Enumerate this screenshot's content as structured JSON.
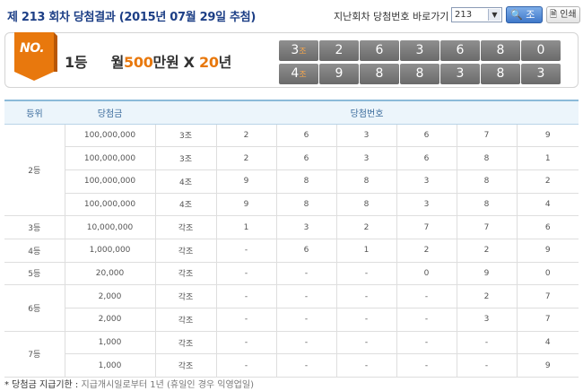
{
  "header": {
    "title": "제 213 회차 당첨결과 (2015년 07월 29일 추첨)",
    "goto_label": "지난회차 당첨번호 바로가기",
    "round_value": "213",
    "search_label": "조회",
    "print_label": "인쇄"
  },
  "banner": {
    "badge": "NO.",
    "rank": "1등",
    "prize_prefix": "월",
    "prize_amount": "500",
    "prize_unit": "만원",
    "times_sign": "X",
    "years": "20",
    "years_unit": "년",
    "jo_suffix": "조",
    "rows": [
      {
        "group": "3",
        "numbers": [
          "2",
          "6",
          "3",
          "6",
          "8",
          "0"
        ]
      },
      {
        "group": "4",
        "numbers": [
          "9",
          "8",
          "8",
          "3",
          "8",
          "3"
        ]
      }
    ]
  },
  "table": {
    "headers": {
      "rank": "등위",
      "prize": "당첨금",
      "numbers": "당첨번호"
    },
    "rows": [
      {
        "rank": "2등",
        "span": 4,
        "prize": "100,000,000",
        "group": "3조",
        "numbers": [
          "2",
          "6",
          "3",
          "6",
          "7",
          "9"
        ]
      },
      {
        "prize": "100,000,000",
        "group": "3조",
        "numbers": [
          "2",
          "6",
          "3",
          "6",
          "8",
          "1"
        ]
      },
      {
        "prize": "100,000,000",
        "group": "4조",
        "numbers": [
          "9",
          "8",
          "8",
          "3",
          "8",
          "2"
        ]
      },
      {
        "prize": "100,000,000",
        "group": "4조",
        "numbers": [
          "9",
          "8",
          "8",
          "3",
          "8",
          "4"
        ]
      },
      {
        "rank": "3등",
        "span": 1,
        "prize": "10,000,000",
        "group": "각조",
        "numbers": [
          "1",
          "3",
          "2",
          "7",
          "7",
          "6"
        ]
      },
      {
        "rank": "4등",
        "span": 1,
        "prize": "1,000,000",
        "group": "각조",
        "numbers": [
          "-",
          "6",
          "1",
          "2",
          "2",
          "9"
        ]
      },
      {
        "rank": "5등",
        "span": 1,
        "prize": "20,000",
        "group": "각조",
        "numbers": [
          "-",
          "-",
          "-",
          "0",
          "9",
          "0"
        ]
      },
      {
        "rank": "6등",
        "span": 2,
        "prize": "2,000",
        "group": "각조",
        "numbers": [
          "-",
          "-",
          "-",
          "-",
          "2",
          "7"
        ]
      },
      {
        "prize": "2,000",
        "group": "각조",
        "numbers": [
          "-",
          "-",
          "-",
          "-",
          "3",
          "7"
        ]
      },
      {
        "rank": "7등",
        "span": 2,
        "prize": "1,000",
        "group": "각조",
        "numbers": [
          "-",
          "-",
          "-",
          "-",
          "-",
          "4"
        ]
      },
      {
        "prize": "1,000",
        "group": "각조",
        "numbers": [
          "-",
          "-",
          "-",
          "-",
          "-",
          "9"
        ]
      }
    ]
  },
  "note": {
    "label": "* 당첨금 지급기한 :",
    "text": "지급개시일로부터 1년 (휴일인 경우 익영업일)"
  },
  "colors": {
    "title": "#1d3f86",
    "accent_orange": "#e8780d",
    "header_bg": "#ecf5fb"
  }
}
